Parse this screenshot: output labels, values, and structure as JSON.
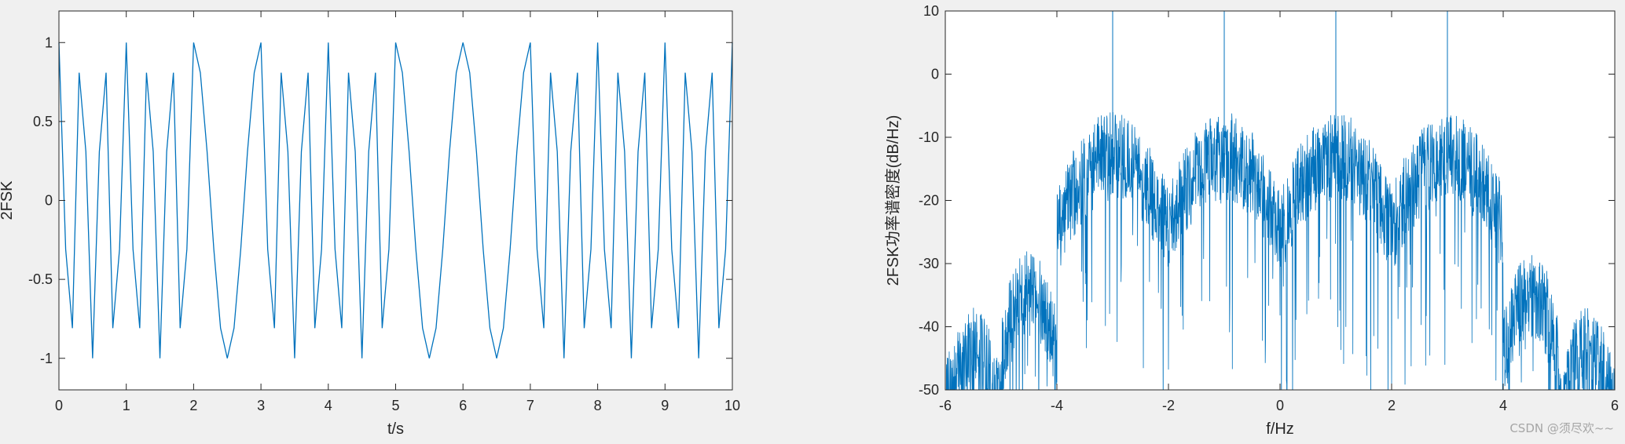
{
  "watermark": "CSDN @须尽欢~~",
  "colors": {
    "line": "#0072bd",
    "axes": "#262626",
    "background": "#f0f0f0",
    "plot_bg": "#ffffff"
  },
  "chart_data": [
    {
      "type": "line",
      "title": "",
      "xlabel": "t/s",
      "ylabel": "2FSK",
      "xlim": [
        0,
        10
      ],
      "ylim": [
        -1.2,
        1.2
      ],
      "xticks": [
        0,
        1,
        2,
        3,
        4,
        5,
        6,
        7,
        8,
        9,
        10
      ],
      "xtick_labels": [
        "0",
        "1",
        "2",
        "3",
        "4",
        "5",
        "6",
        "7",
        "8",
        "9",
        "10"
      ],
      "yticks": [
        -1,
        -0.5,
        0,
        0.5,
        1
      ],
      "ytick_labels": [
        "-1",
        "-0.5",
        "0",
        "0.5",
        "1"
      ],
      "grid": false,
      "box": true,
      "series": [
        {
          "color": "#0072bd",
          "sample_step": 0.1,
          "cycles_per_symbol": [
            3,
            3,
            1,
            3,
            3,
            1,
            1,
            3,
            3,
            3
          ],
          "symbol_duration": 1,
          "amplitude": 1
        }
      ]
    },
    {
      "type": "line",
      "title": "",
      "xlabel": "f/Hz",
      "ylabel": "2FSK功率谱密度(dB/Hz)",
      "xlim": [
        -6,
        6
      ],
      "ylim": [
        -50,
        10
      ],
      "xticks": [
        -6,
        -4,
        -2,
        0,
        2,
        4,
        6
      ],
      "xtick_labels": [
        "-6",
        "-4",
        "-2",
        "0",
        "2",
        "4",
        "6"
      ],
      "yticks": [
        -50,
        -40,
        -30,
        -20,
        -10,
        0,
        10
      ],
      "ytick_labels": [
        "-50",
        "-40",
        "-30",
        "-20",
        "-10",
        "0",
        "10"
      ],
      "grid": false,
      "box": true,
      "series": [
        {
          "color": "#0072bd",
          "spectral_peaks_hz": [
            -3,
            -1,
            1,
            3
          ],
          "main_lobe_peak_db": -10,
          "first_sidelobe_peak_db": -26,
          "second_sidelobe_peak_db": -35,
          "null_spacing_hz": 1
        }
      ]
    }
  ]
}
